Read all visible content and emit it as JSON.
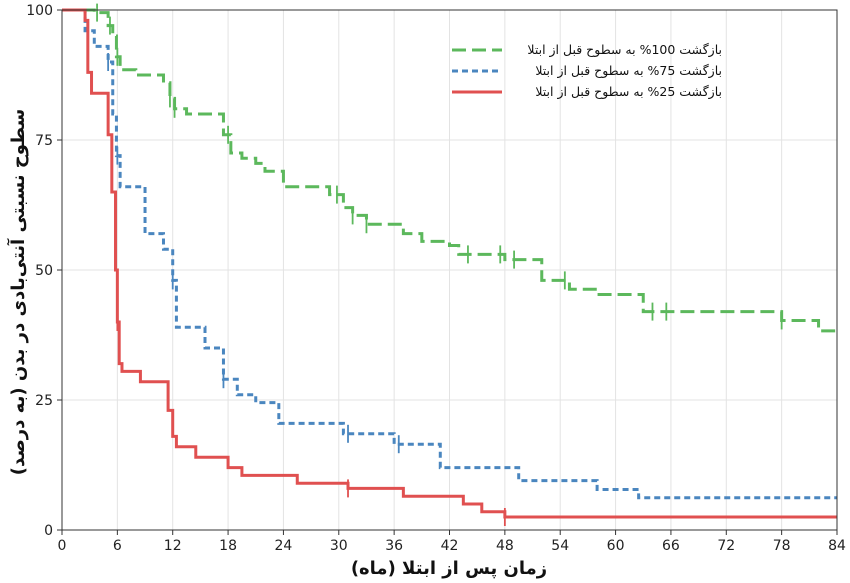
{
  "chart_data": {
    "type": "line",
    "subtype": "kaplan-meier step",
    "xlabel": "زمان پس از ابتلا (ماه)",
    "ylabel": "سطوح نسبتی آنتی‌بادی در بدن (به درصد)",
    "xlim": [
      0,
      84
    ],
    "ylim": [
      0,
      100
    ],
    "xticks": [
      0,
      6,
      12,
      18,
      24,
      30,
      36,
      42,
      48,
      54,
      60,
      66,
      72,
      78,
      84
    ],
    "yticks": [
      0,
      25,
      50,
      75,
      100
    ],
    "grid": true,
    "legend_position": "top-right",
    "series": [
      {
        "name": "بازگشت 100% به سطوح قبل از ابتلا",
        "color": "#5cb85c",
        "dash": "dashed",
        "x": [
          0,
          3.5,
          5.0,
          5.5,
          5.9,
          6.3,
          8.0,
          11.0,
          11.7,
          12.2,
          13.5,
          17.5,
          18.3,
          19.5,
          21.0,
          22.0,
          24.0,
          29.0,
          30.5,
          31.5,
          33.0,
          37.0,
          39.0,
          42.0,
          43.0,
          48.0,
          52.0,
          55.0,
          58.0,
          63.0,
          78.0,
          82.0,
          84.0
        ],
        "y": [
          100,
          99.5,
          97,
          95,
          91,
          88.5,
          87.5,
          86.0,
          83,
          81,
          80,
          76,
          72.5,
          71.5,
          70.5,
          69,
          66,
          64.5,
          62,
          60.5,
          58.8,
          57,
          55.5,
          54.7,
          53.0,
          52.0,
          48,
          46.3,
          45.3,
          42.0,
          40.3,
          38.3,
          38.3
        ],
        "censor_x": [
          3.8,
          5.2,
          6.0,
          11.7,
          12.2,
          18.0,
          29.8,
          31.5,
          33.0,
          44.0,
          47.5,
          49.0,
          54.5,
          64.0,
          65.5,
          78.0
        ]
      },
      {
        "name": "بازگشت 75% به سطوح قبل از ابتلا",
        "color": "#4a86bf",
        "dash": "dotted",
        "x": [
          0,
          2.5,
          3.5,
          5.0,
          5.5,
          5.9,
          6.3,
          9.0,
          11.0,
          12.0,
          12.4,
          15.5,
          17.5,
          19.0,
          21.0,
          23.5,
          30.5,
          36.0,
          41.0,
          49.5,
          58.0,
          62.5,
          84.0
        ],
        "y": [
          100,
          96,
          93,
          90,
          80,
          72,
          66,
          57,
          54,
          48,
          39,
          35,
          29,
          26,
          24.5,
          20.5,
          18.5,
          16.5,
          12.0,
          9.5,
          7.8,
          6.2,
          6.2
        ],
        "censor_x": [
          5.0,
          6.0,
          12.0,
          17.5,
          31.0,
          36.5
        ]
      },
      {
        "name": "بازگشت 25% به سطوح قبل از ابتلا",
        "color": "#e05050",
        "dash": "solid",
        "x": [
          0,
          2.5,
          2.8,
          3.2,
          5.0,
          5.4,
          5.8,
          6.0,
          6.2,
          6.5,
          8.5,
          11.5,
          12.0,
          12.4,
          14.5,
          18.0,
          19.5,
          25.5,
          31.0,
          37.0,
          43.5,
          45.5,
          48.0,
          84.0
        ],
        "y": [
          100,
          98,
          88,
          84,
          76,
          65,
          50,
          40,
          32,
          30.5,
          28.5,
          23,
          18,
          16,
          14,
          12,
          10.5,
          9.0,
          8.0,
          6.5,
          5.0,
          3.5,
          2.5,
          2.5
        ],
        "censor_x": [
          6.0,
          31.0,
          48.0
        ]
      }
    ]
  }
}
